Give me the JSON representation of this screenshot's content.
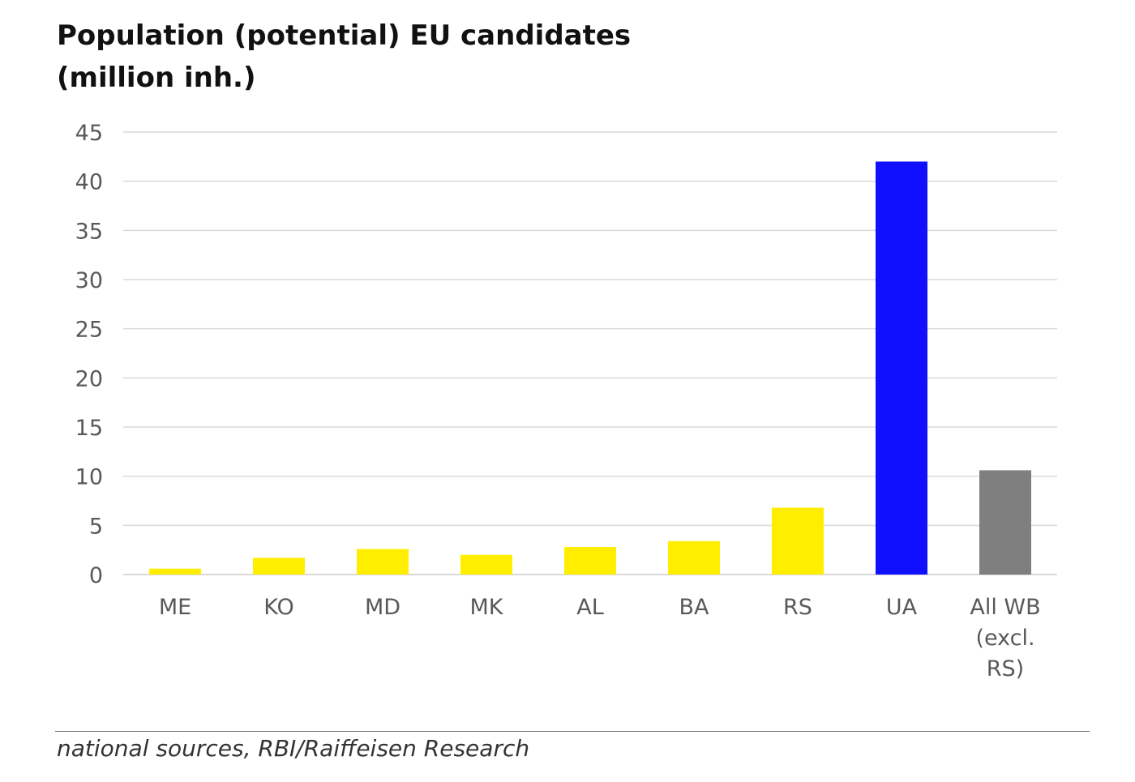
{
  "title": {
    "line1": "Population (potential) EU candidates",
    "line2": "(million inh.)"
  },
  "source": "national sources, RBI/Raiffeisen Research",
  "chart_data": {
    "type": "bar",
    "categories": [
      [
        "ME"
      ],
      [
        "KO"
      ],
      [
        "MD"
      ],
      [
        "MK"
      ],
      [
        "AL"
      ],
      [
        "BA"
      ],
      [
        "RS"
      ],
      [
        "UA"
      ],
      [
        "All WB",
        "(excl.",
        "RS)"
      ]
    ],
    "values": [
      0.6,
      1.7,
      2.6,
      2.0,
      2.8,
      3.4,
      6.8,
      42.0,
      10.6
    ],
    "colors": [
      "#ffee00",
      "#ffee00",
      "#ffee00",
      "#ffee00",
      "#ffee00",
      "#ffee00",
      "#ffee00",
      "#1010ff",
      "#7f7f7f"
    ],
    "y_ticks": [
      0,
      5,
      10,
      15,
      20,
      25,
      30,
      35,
      40,
      45
    ],
    "ylim": [
      0,
      45
    ],
    "grid": true,
    "legend": "none",
    "gridline_color": "#d9d9d9",
    "tick_label_color": "#595959"
  }
}
